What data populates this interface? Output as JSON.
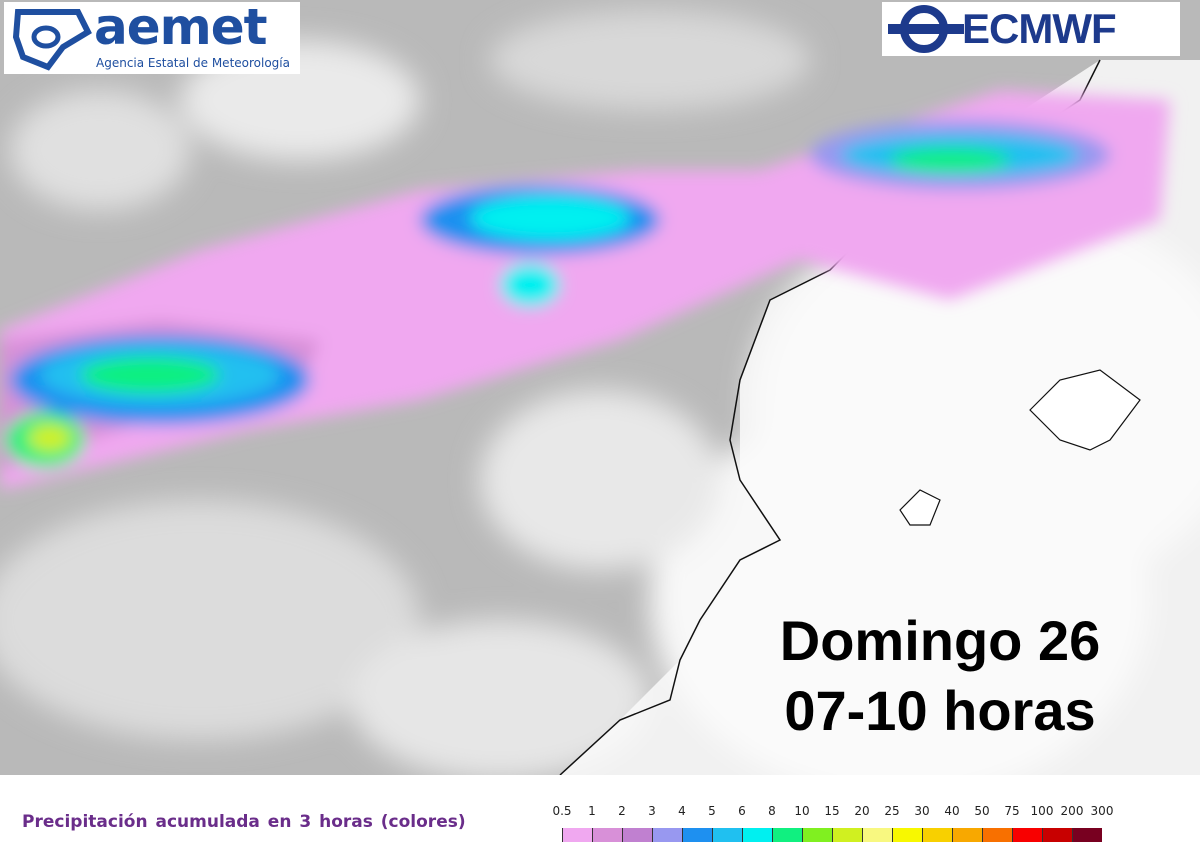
{
  "logos": {
    "aemet": {
      "name": "aemet",
      "subtitle": "Agencia Estatal de Meteorología",
      "color": "#1f4fa0"
    },
    "ecmwf": {
      "name": "ECMWF",
      "color": "#1d3a8c"
    }
  },
  "forecast": {
    "day": "Domingo 26",
    "hours": "07-10 horas"
  },
  "legend": {
    "caption": "Precipitación acumulada en 3 horas (colores)",
    "labels": [
      "0.5",
      "1",
      "2",
      "3",
      "4",
      "5",
      "6",
      "8",
      "10",
      "15",
      "20",
      "25",
      "30",
      "40",
      "50",
      "75",
      "100",
      "200",
      "300"
    ],
    "colors": [
      "#f0a8f0",
      "#d890d8",
      "#c080d0",
      "#9898f0",
      "#1e90f0",
      "#20c0f0",
      "#00f0f0",
      "#10f080",
      "#80f020",
      "#d0f020",
      "#f8f880",
      "#f8f800",
      "#f8d000",
      "#f8a800",
      "#f87000",
      "#f80000",
      "#c80000",
      "#780020"
    ]
  }
}
